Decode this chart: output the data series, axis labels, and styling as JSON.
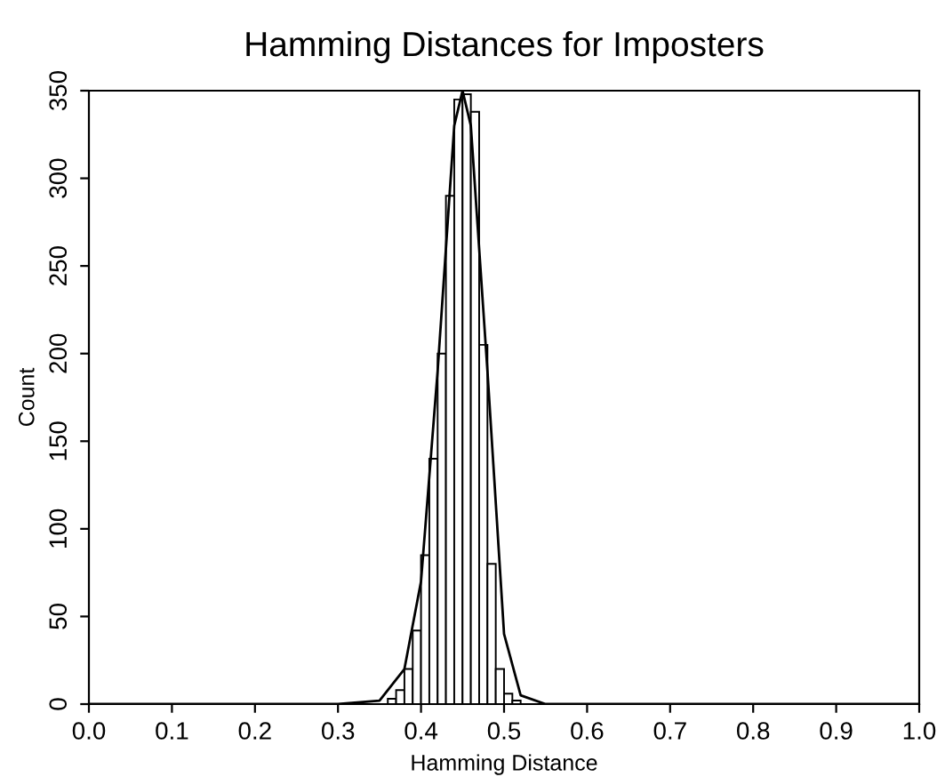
{
  "chart_data": {
    "type": "histogram",
    "title": "Hamming Distances for Imposters",
    "xlabel": "Hamming Distance",
    "ylabel": "Count",
    "bins": [
      0.36,
      0.37,
      0.38,
      0.39,
      0.4,
      0.41,
      0.42,
      0.43,
      0.44,
      0.45,
      0.46,
      0.47,
      0.48,
      0.49,
      0.5,
      0.51,
      0.52
    ],
    "values": [
      3,
      8,
      20,
      42,
      85,
      140,
      200,
      290,
      345,
      348,
      338,
      205,
      80,
      20,
      6,
      2
    ],
    "color": "#ffffff",
    "series": [
      {
        "type": "line",
        "color": "#000000",
        "x": [
          0.0,
          0.3,
          0.35,
          0.38,
          0.4,
          0.42,
          0.44,
          0.45,
          0.46,
          0.48,
          0.5,
          0.52,
          0.55,
          1.0
        ],
        "values": [
          0,
          0,
          2,
          20,
          70,
          190,
          330,
          350,
          330,
          190,
          40,
          5,
          0,
          0
        ]
      }
    ],
    "xlim": [
      0.0,
      1.0
    ],
    "xticks": [
      {
        "value": 0.0,
        "label": "0.0"
      },
      0.1,
      0.2,
      0.3,
      0.4,
      0.5,
      0.6,
      0.7,
      0.8,
      0.9,
      {
        "value": 1.0,
        "label": "1.0"
      }
    ],
    "ylim": [
      0,
      350
    ],
    "yticks": [
      0,
      50,
      100,
      150,
      200,
      250,
      300,
      350
    ],
    "grid": false
  }
}
